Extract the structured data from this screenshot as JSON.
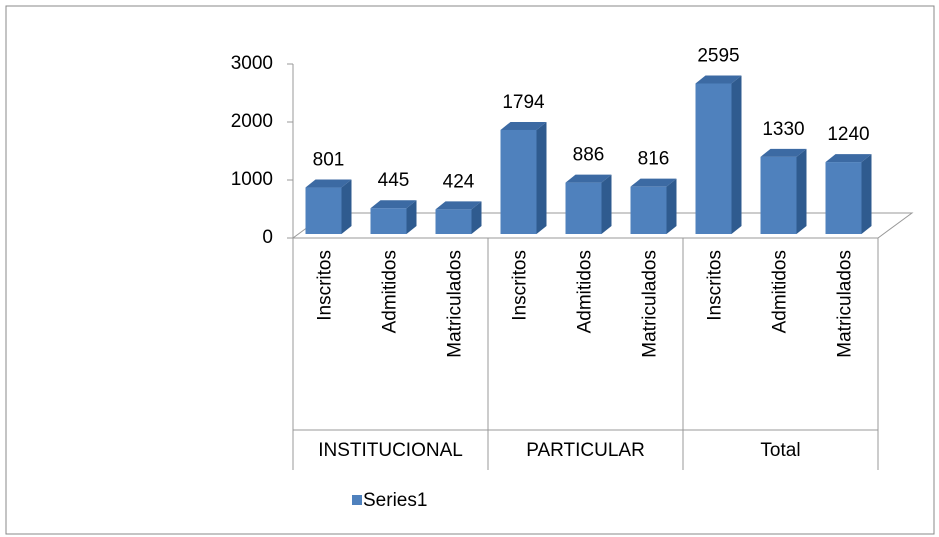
{
  "chart_data": {
    "type": "bar3d",
    "groups": [
      {
        "name": "INSTITUCIONAL",
        "size": 3
      },
      {
        "name": "PARTICULAR",
        "size": 3
      },
      {
        "name": "Total",
        "size": 3
      }
    ],
    "categories": [
      "Inscritos",
      "Admitidos",
      "Matriculados",
      "Inscritos",
      "Admitidos",
      "Matriculados",
      "Inscritos",
      "Admitidos",
      "Matriculados"
    ],
    "series": [
      {
        "name": "Series1",
        "color": "#4f81bd",
        "values": [
          801,
          445,
          424,
          1794,
          886,
          816,
          2595,
          1330,
          1240
        ]
      }
    ],
    "ylim": [
      0,
      3000
    ],
    "yticks": [
      0,
      1000,
      2000,
      3000
    ],
    "legend": "bottom"
  }
}
